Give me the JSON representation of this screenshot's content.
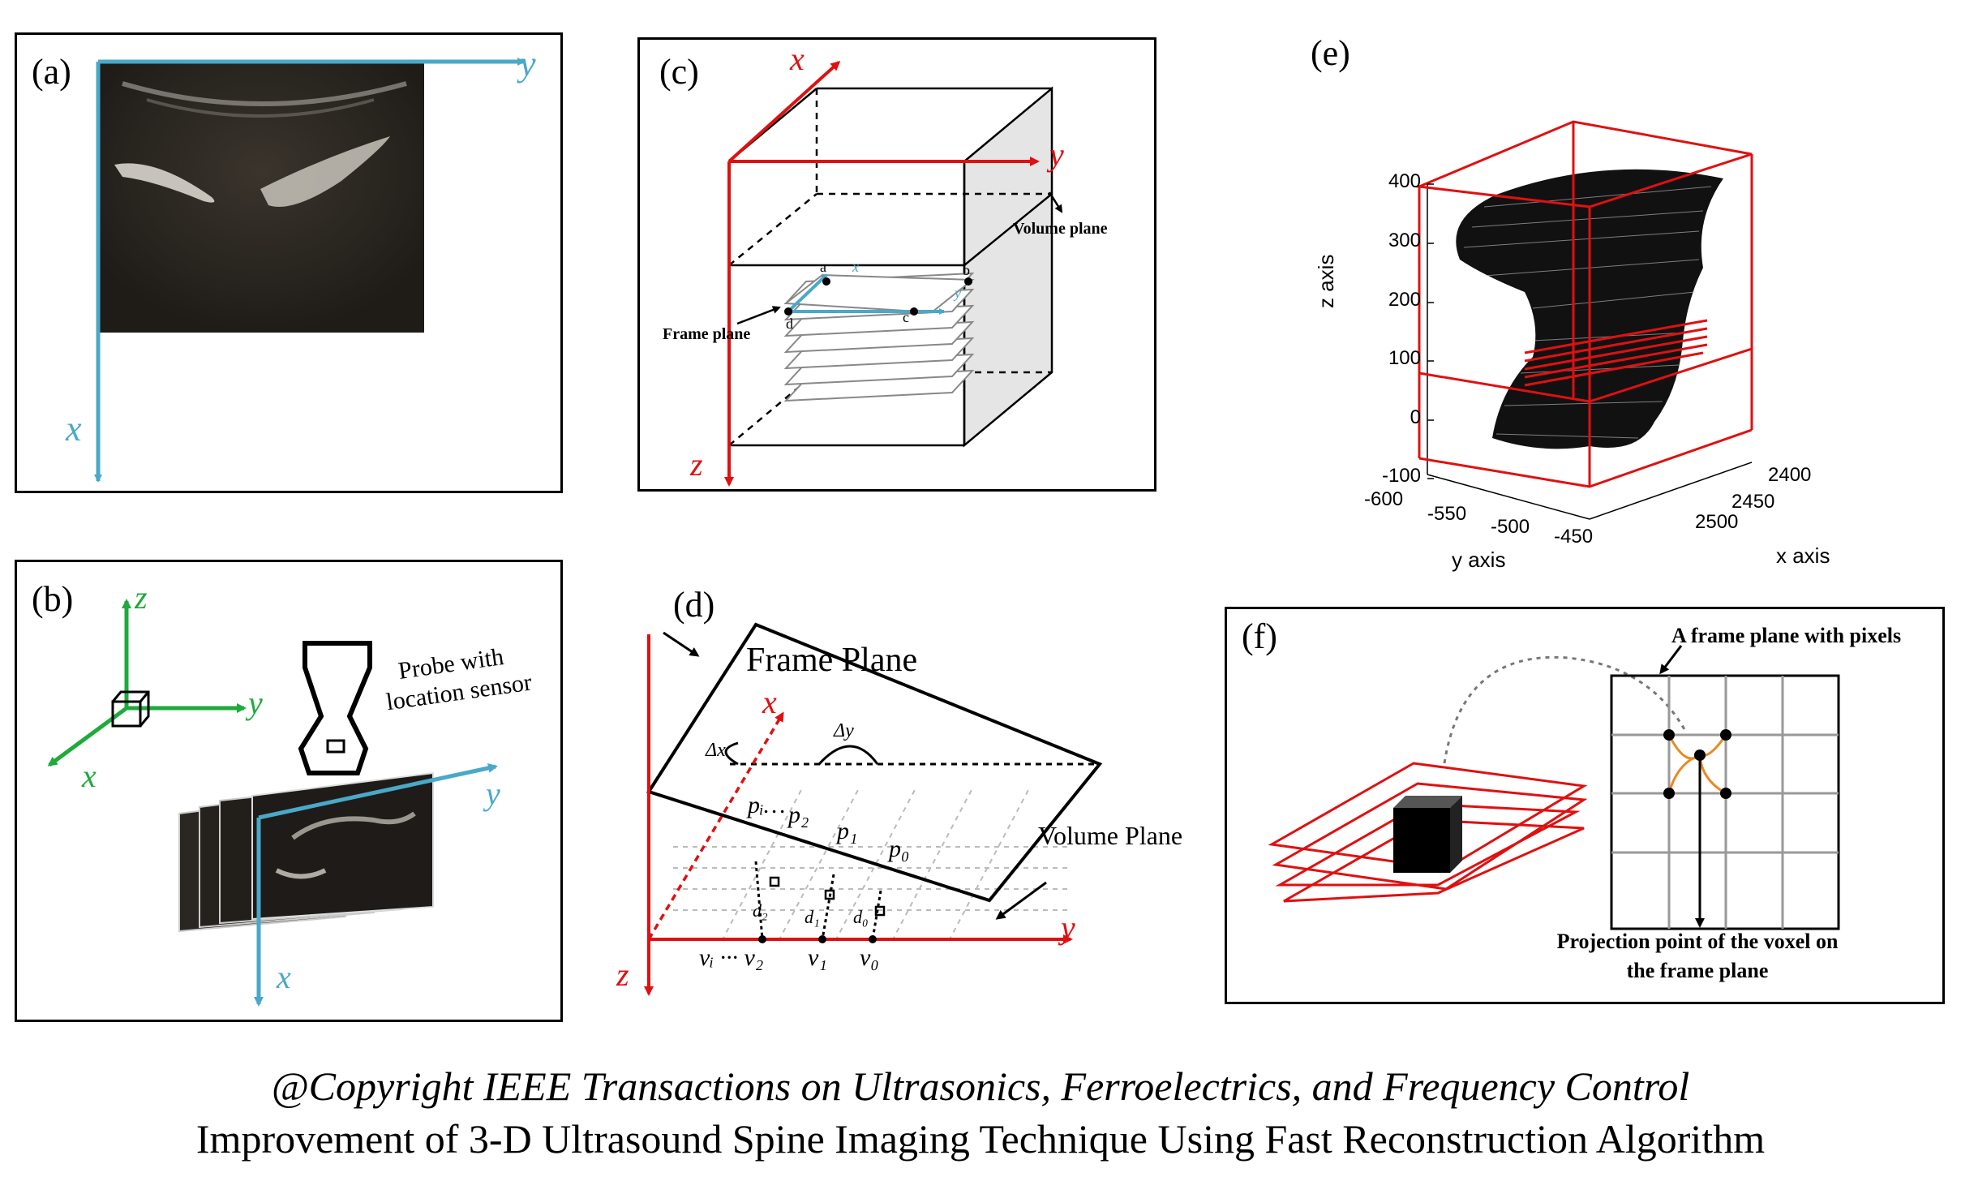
{
  "panels": {
    "a": {
      "label": "(a)",
      "axis_y": "y",
      "axis_x": "x"
    },
    "b": {
      "label": "(b)",
      "axis_z": "z",
      "axis_y_green": "y",
      "axis_x_green": "x",
      "probe_label_1": "Probe with",
      "probe_label_2": "location sensor",
      "axis_y_blue": "y",
      "axis_x_blue": "x"
    },
    "c": {
      "label": "(c)",
      "axis_x": "x",
      "axis_y": "y",
      "axis_z": "z",
      "volume_plane": "Volume plane",
      "frame_plane": "Frame plane",
      "pt_a": "a",
      "pt_b": "b",
      "pt_c": "c",
      "pt_d": "d",
      "small_x": "x",
      "small_y": "y"
    },
    "d": {
      "label": "(d)",
      "frame_plane": "Frame Plane",
      "volume_plane": "Volume  Plane",
      "axis_x": "x",
      "axis_y": "y",
      "axis_z": "z",
      "delta_x": "Δx",
      "delta_y": "Δy",
      "p_labels": [
        "pᵢ…",
        "p₂",
        "p₁",
        "p₀"
      ],
      "d_labels": [
        "d₂",
        "d₁",
        "d₀"
      ],
      "v_labels": [
        "vᵢ ··· v₂",
        "v₁",
        "v₀"
      ]
    },
    "e": {
      "label": "(e)",
      "z_ticks": [
        "400",
        "300",
        "200",
        "100",
        "0",
        "-100"
      ],
      "y_ticks": [
        "-600",
        "-550",
        "-500",
        "-450"
      ],
      "x_ticks": [
        "2400",
        "2450",
        "2500"
      ],
      "z_axis_label": "z axis",
      "y_axis_label": "y axis",
      "x_axis_label": "x axis"
    },
    "f": {
      "label": "(f)",
      "frame_plane_label": "A frame plane with pixels",
      "projection_label_1": "Projection point of the voxel on",
      "projection_label_2": "the frame plane"
    }
  },
  "captions": {
    "line1": "@Copyright IEEE Transactions on Ultrasonics, Ferroelectrics, and Frequency Control",
    "line2": "Improvement of 3-D Ultrasound Spine Imaging Technique Using Fast Reconstruction Algorithm"
  },
  "colors": {
    "blue_axis": "#4aa8c8",
    "red_axis": "#e01010",
    "green_axis": "#1faa3c"
  }
}
